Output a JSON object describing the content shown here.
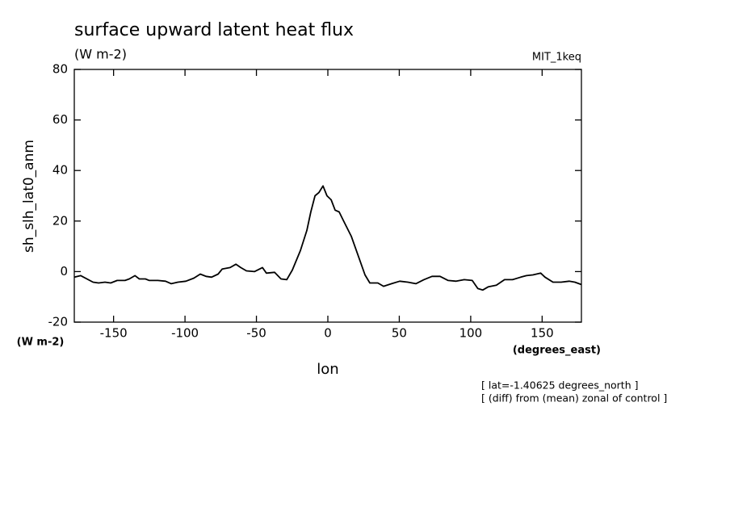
{
  "chart_data": {
    "type": "line",
    "title": "surface upward latent heat flux",
    "subtitle": "(W m-2)",
    "dataset_label": "MIT_1keq",
    "y_label": "sh_slh_lat0_anm",
    "y_units": "(W m-2)",
    "x_label": "lon",
    "x_units": "(degrees_east)",
    "annotations": [
      "[ lat=-1.40625 degrees_north ]",
      "[ (diff) from (mean) zonal of control ]"
    ],
    "xlim": [
      -177.5,
      177.5
    ],
    "ylim": [
      -20,
      80
    ],
    "xticks": [
      -150,
      -100,
      -50,
      0,
      50,
      100,
      150
    ],
    "yticks": [
      -20,
      0,
      20,
      40,
      60,
      80
    ],
    "x": [
      -177.4,
      -173,
      -164.4,
      -160.5,
      -156,
      -152,
      -147.5,
      -142,
      -139,
      -135,
      -132,
      -127.7,
      -125,
      -119,
      -113.6,
      -109.6,
      -105,
      -99.4,
      -93.8,
      -89.3,
      -85.3,
      -81.4,
      -76.8,
      -74,
      -68.4,
      -64.4,
      -61,
      -57,
      -51.4,
      -45.8,
      -43,
      -37.3,
      -32.8,
      -28.8,
      -24.9,
      -19.2,
      -14.7,
      -11.9,
      -9,
      -6.2,
      -3.4,
      -0.6,
      2.3,
      5.1,
      7.9,
      10.7,
      16.4,
      22,
      26,
      29.4,
      35,
      39,
      44.6,
      50.3,
      56,
      61.6,
      67.2,
      72.9,
      78.5,
      84.2,
      89.8,
      95.5,
      101.1,
      105,
      108.5,
      112.4,
      118,
      123.7,
      129.3,
      135,
      139,
      143.5,
      149,
      152,
      157.6,
      163.3,
      168.9,
      172.9,
      177.4
    ],
    "series": [
      {
        "color": "#000000",
        "values": [
          -2.2,
          -1.6,
          -4.2,
          -4.5,
          -4.2,
          -4.5,
          -3.5,
          -3.5,
          -2.9,
          -1.6,
          -2.9,
          -2.9,
          -3.5,
          -3.5,
          -3.8,
          -4.8,
          -4.2,
          -3.8,
          -2.6,
          -1,
          -1.9,
          -2.2,
          -1,
          1,
          1.6,
          2.9,
          1.6,
          0.3,
          0,
          1.6,
          -0.6,
          -0.3,
          -2.9,
          -3.2,
          0.6,
          8.3,
          16.3,
          23.6,
          30,
          31.3,
          33.9,
          30,
          28.4,
          24.3,
          23.6,
          20.4,
          14,
          5.1,
          -1.3,
          -4.5,
          -4.5,
          -5.8,
          -4.8,
          -3.8,
          -4.2,
          -4.8,
          -3.2,
          -1.9,
          -1.9,
          -3.5,
          -3.8,
          -3.2,
          -3.5,
          -6.7,
          -7.3,
          -6,
          -5.4,
          -3.2,
          -3.2,
          -2.2,
          -1.6,
          -1.3,
          -0.6,
          -2.2,
          -4.2,
          -4.2,
          -3.8,
          -4.2,
          -5.1
        ]
      }
    ]
  }
}
